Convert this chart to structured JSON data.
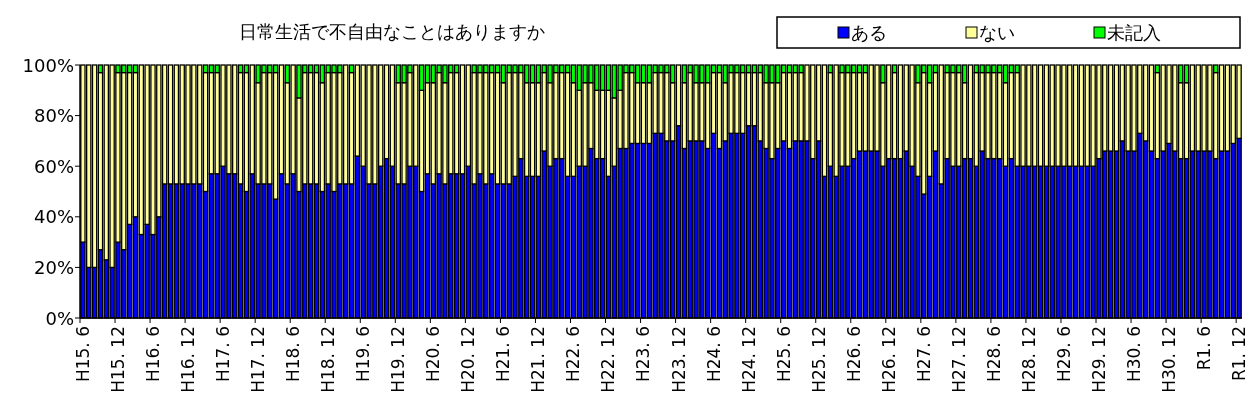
{
  "chart_data": {
    "type": "bar",
    "stacked": true,
    "title": "日常生活で不自由なことはありますか",
    "legend": "top right",
    "grid": false,
    "ylim": [
      0,
      100
    ],
    "yticks": [
      {
        "value": 0,
        "label": "0%"
      },
      {
        "value": 20,
        "label": "20%"
      },
      {
        "value": 40,
        "label": "40%"
      },
      {
        "value": 60,
        "label": "60%"
      },
      {
        "value": 80,
        "label": "80%"
      },
      {
        "value": 100,
        "label": "100%"
      }
    ],
    "categories": [
      "H15. 6",
      null,
      null,
      null,
      null,
      null,
      "H15. 12",
      null,
      null,
      null,
      null,
      null,
      "H16. 6",
      null,
      null,
      null,
      null,
      null,
      "H16. 12",
      null,
      null,
      null,
      null,
      null,
      "H17. 6",
      null,
      null,
      null,
      null,
      null,
      "H17. 12",
      null,
      null,
      null,
      null,
      null,
      "H18. 6",
      null,
      null,
      null,
      null,
      null,
      "H18. 12",
      null,
      null,
      null,
      null,
      null,
      "H19. 6",
      null,
      null,
      null,
      null,
      null,
      "H19. 12",
      null,
      null,
      null,
      null,
      null,
      "H20. 6",
      null,
      null,
      null,
      null,
      null,
      "H20. 12",
      null,
      null,
      null,
      null,
      null,
      "H21. 6",
      null,
      null,
      null,
      null,
      null,
      "H21. 12",
      null,
      null,
      null,
      null,
      null,
      "H22. 6",
      null,
      null,
      null,
      null,
      null,
      "H22. 12",
      null,
      null,
      null,
      null,
      null,
      "H23. 6",
      null,
      null,
      null,
      null,
      null,
      "H23. 12",
      null,
      null,
      null,
      null,
      null,
      "H24. 6",
      null,
      null,
      null,
      null,
      null,
      "H24. 12",
      null,
      null,
      null,
      null,
      null,
      "H25. 6",
      null,
      null,
      null,
      null,
      null,
      "H25. 12",
      null,
      null,
      null,
      null,
      null,
      "H26. 6",
      null,
      null,
      null,
      null,
      null,
      "H26. 12",
      null,
      null,
      null,
      null,
      null,
      "H27. 6",
      null,
      null,
      null,
      null,
      null,
      "H27. 12",
      null,
      null,
      null,
      null,
      null,
      "H28. 6",
      null,
      null,
      null,
      null,
      null,
      "H28. 12",
      null,
      null,
      null,
      null,
      null,
      "H29. 6",
      null,
      null,
      null,
      null,
      null,
      "H29. 12",
      null,
      null,
      null,
      null,
      null,
      "H30. 6",
      null,
      null,
      null,
      null,
      null,
      "H30. 12",
      null,
      null,
      null,
      null,
      null,
      "R1. 6",
      null,
      null,
      null,
      null,
      null,
      "R1. 12"
    ],
    "series": [
      {
        "name": "ある",
        "color": "#0000ff",
        "values": [
          30,
          20,
          20,
          27,
          23,
          20,
          30,
          27,
          37,
          40,
          33,
          37,
          33,
          40,
          53,
          53,
          53,
          53,
          53,
          53,
          53,
          50,
          57,
          57,
          60,
          57,
          57,
          53,
          50,
          57,
          53,
          53,
          53,
          47,
          57,
          53,
          57,
          50,
          53,
          53,
          53,
          50,
          53,
          50,
          53,
          53,
          53,
          64,
          60,
          53,
          53,
          60,
          63,
          60,
          53,
          53,
          60,
          60,
          50,
          57,
          53,
          57,
          53,
          57,
          57,
          57,
          60,
          53,
          57,
          53,
          57,
          53,
          53,
          53,
          56,
          63,
          56,
          56,
          56,
          66,
          60,
          63,
          63,
          56,
          56,
          60,
          60,
          67,
          63,
          63,
          56,
          60,
          67,
          67,
          69,
          69,
          69,
          69,
          73,
          73,
          70,
          70,
          76,
          67,
          70,
          70,
          70,
          67,
          73,
          67,
          70,
          73,
          73,
          73,
          76,
          76,
          70,
          67,
          63,
          67,
          70,
          67,
          70,
          70,
          70,
          63,
          70,
          56,
          60,
          56,
          60,
          60,
          63,
          66,
          66,
          66,
          66,
          60,
          63,
          63,
          63,
          66,
          60,
          56,
          49,
          56,
          66,
          53,
          63,
          60,
          60,
          63,
          63,
          60,
          66,
          63,
          63,
          63,
          60,
          63,
          60,
          60,
          60,
          60,
          60,
          60,
          60,
          60,
          60,
          60,
          60,
          60,
          60,
          60,
          63,
          66,
          66,
          66,
          70,
          66,
          66,
          73,
          70,
          66,
          63,
          66,
          69,
          66,
          63,
          63,
          66,
          66,
          66,
          66,
          63,
          66,
          66,
          69,
          71
        ]
      },
      {
        "name": "ない",
        "color": "#ffff99",
        "values": [
          70,
          80,
          80,
          70,
          77,
          80,
          67,
          70,
          60,
          57,
          67,
          63,
          67,
          60,
          47,
          47,
          47,
          47,
          47,
          47,
          47,
          47,
          40,
          40,
          40,
          43,
          43,
          44,
          47,
          43,
          40,
          44,
          44,
          50,
          43,
          40,
          43,
          37,
          44,
          44,
          44,
          43,
          44,
          47,
          44,
          47,
          44,
          36,
          40,
          47,
          47,
          40,
          37,
          40,
          40,
          40,
          37,
          40,
          40,
          36,
          40,
          40,
          40,
          40,
          40,
          43,
          40,
          44,
          40,
          44,
          40,
          44,
          40,
          44,
          41,
          34,
          37,
          37,
          37,
          31,
          33,
          34,
          34,
          41,
          37,
          30,
          33,
          26,
          27,
          27,
          34,
          27,
          23,
          30,
          28,
          24,
          24,
          24,
          24,
          24,
          27,
          23,
          24,
          26,
          27,
          23,
          23,
          26,
          24,
          30,
          23,
          24,
          24,
          24,
          21,
          21,
          27,
          26,
          30,
          26,
          27,
          30,
          27,
          27,
          30,
          37,
          30,
          44,
          37,
          44,
          37,
          37,
          34,
          31,
          31,
          34,
          34,
          33,
          37,
          34,
          37,
          34,
          40,
          37,
          48,
          37,
          31,
          47,
          34,
          37,
          37,
          30,
          37,
          37,
          31,
          34,
          34,
          34,
          33,
          34,
          37,
          40,
          40,
          40,
          40,
          40,
          40,
          40,
          40,
          40,
          40,
          40,
          40,
          40,
          37,
          34,
          34,
          34,
          30,
          34,
          34,
          27,
          30,
          34,
          34,
          34,
          31,
          34,
          30,
          30,
          34,
          34,
          34,
          34,
          34,
          34,
          34,
          31,
          29
        ]
      },
      {
        "name": "未記入",
        "color": "#00ff00",
        "values": [
          0,
          0,
          0,
          3,
          0,
          0,
          3,
          3,
          3,
          3,
          0,
          0,
          0,
          0,
          0,
          0,
          0,
          0,
          0,
          0,
          0,
          3,
          3,
          3,
          0,
          0,
          0,
          3,
          3,
          0,
          7,
          3,
          3,
          3,
          0,
          7,
          0,
          13,
          3,
          3,
          3,
          7,
          3,
          3,
          3,
          0,
          3,
          0,
          0,
          0,
          0,
          0,
          0,
          0,
          7,
          7,
          3,
          0,
          10,
          7,
          7,
          3,
          7,
          3,
          3,
          0,
          0,
          3,
          3,
          3,
          3,
          3,
          7,
          3,
          3,
          3,
          7,
          7,
          7,
          3,
          7,
          3,
          3,
          3,
          7,
          10,
          7,
          7,
          10,
          10,
          10,
          13,
          10,
          3,
          3,
          7,
          7,
          7,
          3,
          3,
          3,
          7,
          0,
          7,
          3,
          7,
          7,
          7,
          3,
          3,
          7,
          3,
          3,
          3,
          3,
          3,
          3,
          7,
          7,
          7,
          3,
          3,
          3,
          3,
          0,
          0,
          0,
          0,
          3,
          0,
          3,
          3,
          3,
          3,
          3,
          0,
          0,
          7,
          0,
          3,
          0,
          0,
          0,
          7,
          3,
          7,
          3,
          0,
          3,
          3,
          3,
          7,
          0,
          3,
          3,
          3,
          3,
          3,
          7,
          3,
          3,
          0,
          0,
          0,
          0,
          0,
          0,
          0,
          0,
          0,
          0,
          0,
          0,
          0,
          0,
          0,
          0,
          0,
          0,
          0,
          0,
          0,
          0,
          0,
          3,
          0,
          0,
          0,
          7,
          7,
          0,
          0,
          0,
          0,
          3,
          0,
          0,
          0,
          0
        ]
      }
    ]
  }
}
